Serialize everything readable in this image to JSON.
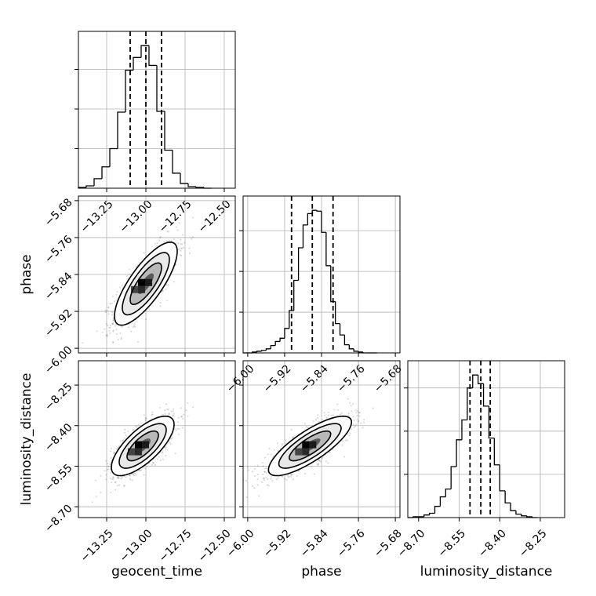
{
  "chart_data": {
    "type": "corner",
    "parameters": [
      "geocent_time",
      "phase",
      "luminosity_distance"
    ],
    "axis_labels": [
      "geocent_time",
      "phase",
      "luminosity_distance"
    ],
    "ranges": {
      "geocent_time": [
        -13.43,
        -12.43
      ],
      "phase": [
        -6.01,
        -5.67
      ],
      "luminosity_distance": [
        -8.74,
        -8.16
      ]
    },
    "ticks": {
      "geocent_time": [
        -13.25,
        -13.0,
        -12.75,
        -12.5
      ],
      "phase": [
        -6.0,
        -5.92,
        -5.84,
        -5.76,
        -5.68
      ],
      "luminosity_distance": [
        -8.7,
        -8.55,
        -8.4,
        -8.25
      ]
    },
    "tick_labels": {
      "geocent_time": [
        "−13.25",
        "−13.00",
        "−12.75",
        "−12.50"
      ],
      "phase": [
        "−6.00",
        "−5.92",
        "−5.84",
        "−5.76",
        "−5.68"
      ],
      "luminosity_distance": [
        "−8.70",
        "−8.55",
        "−8.40",
        "−8.25"
      ]
    },
    "quantiles": {
      "geocent_time": [
        -13.1,
        -13.0,
        -12.9
      ],
      "phase": [
        -5.905,
        -5.86,
        -5.815
      ],
      "luminosity_distance": [
        -8.51,
        -8.47,
        -8.435
      ]
    },
    "histograms": {
      "geocent_time": {
        "edges": [
          -13.43,
          -13.38,
          -13.33,
          -13.28,
          -13.23,
          -13.18,
          -13.13,
          -13.08,
          -13.03,
          -12.98,
          -12.93,
          -12.88,
          -12.83,
          -12.78,
          -12.73,
          -12.68,
          -12.63,
          -12.58
        ],
        "counts": [
          1,
          3,
          12,
          27,
          50,
          96,
          149,
          165,
          180,
          155,
          97,
          48,
          19,
          6,
          2,
          1,
          0
        ]
      },
      "phase": {
        "edges": [
          -6.01,
          -6.0,
          -5.99,
          -5.98,
          -5.97,
          -5.96,
          -5.95,
          -5.94,
          -5.93,
          -5.92,
          -5.91,
          -5.9,
          -5.89,
          -5.88,
          -5.87,
          -5.86,
          -5.85,
          -5.84,
          -5.83,
          -5.82,
          -5.81,
          -5.8,
          -5.79,
          -5.78,
          -5.77,
          -5.76,
          -5.75,
          -5.74,
          -5.73,
          -5.72
        ],
        "counts": [
          0,
          0,
          1,
          2,
          3,
          5,
          9,
          14,
          18,
          30,
          52,
          89,
          129,
          157,
          171,
          175,
          174,
          148,
          107,
          63,
          36,
          22,
          10,
          5,
          2,
          1,
          0,
          0,
          0
        ]
      },
      "luminosity_distance": {
        "edges": [
          -8.74,
          -8.72,
          -8.7,
          -8.68,
          -8.66,
          -8.64,
          -8.62,
          -8.6,
          -8.58,
          -8.56,
          -8.54,
          -8.52,
          -8.5,
          -8.48,
          -8.46,
          -8.44,
          -8.42,
          -8.4,
          -8.38,
          -8.36,
          -8.34,
          -8.32,
          -8.3,
          -8.28,
          -8.26
        ],
        "counts": [
          0,
          1,
          1,
          3,
          5,
          13,
          24,
          33,
          59,
          90,
          113,
          150,
          165,
          155,
          129,
          92,
          61,
          31,
          17,
          8,
          4,
          2,
          1,
          0
        ]
      }
    },
    "pairs": [
      {
        "x": "geocent_time",
        "y": "phase",
        "mean": [
          -13.0,
          -5.86
        ],
        "sd": [
          0.1,
          0.045
        ],
        "rho": 0.78
      },
      {
        "x": "geocent_time",
        "y": "luminosity_distance",
        "mean": [
          -13.02,
          -8.475
        ],
        "sd": [
          0.1,
          0.055
        ],
        "rho": 0.72
      },
      {
        "x": "phase",
        "y": "luminosity_distance",
        "mean": [
          -5.865,
          -8.475
        ],
        "sd": [
          0.045,
          0.055
        ],
        "rho": 0.8
      }
    ],
    "contour_levels": [
      0.5,
      1.0,
      1.5,
      2.0
    ],
    "grid": true
  }
}
